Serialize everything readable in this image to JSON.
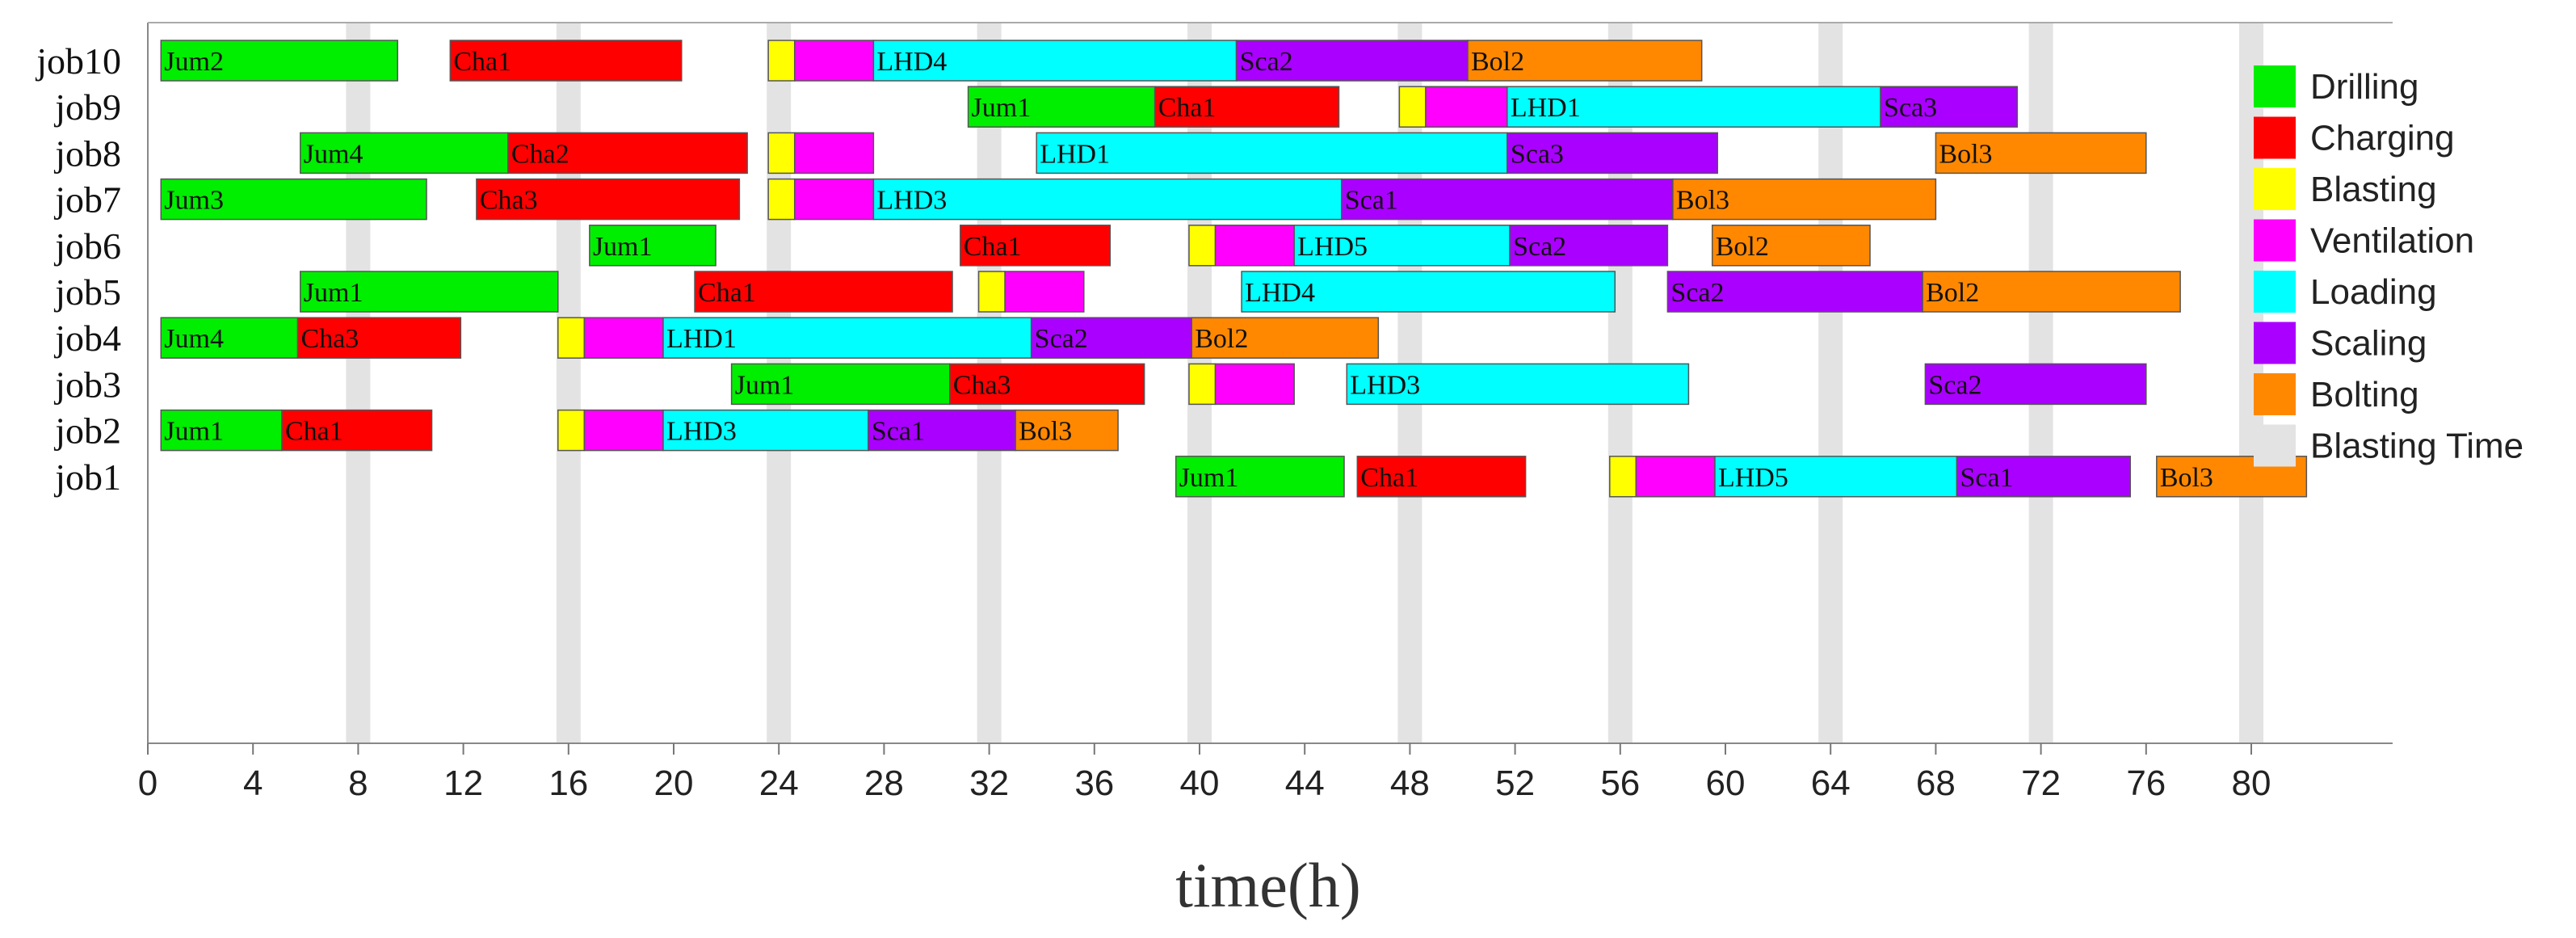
{
  "chart_data": {
    "type": "gantt",
    "xlabel": "time(h)",
    "xlim": [
      0,
      84
    ],
    "xticks": [
      0,
      4,
      8,
      12,
      16,
      20,
      24,
      28,
      32,
      36,
      40,
      44,
      48,
      52,
      56,
      60,
      64,
      68,
      72,
      76,
      80
    ],
    "jobs": [
      "job10",
      "job9",
      "job8",
      "job7",
      "job6",
      "job5",
      "job4",
      "job3",
      "job2",
      "job1"
    ],
    "blasting_times": [
      8,
      16,
      24,
      32,
      40,
      48,
      56,
      64,
      72,
      80
    ],
    "legend": [
      {
        "name": "Drilling",
        "color": "#00ee00"
      },
      {
        "name": "Charging",
        "color": "#ff0000"
      },
      {
        "name": "Blasting",
        "color": "#ffff00"
      },
      {
        "name": "Ventilation",
        "color": "#ff00ff"
      },
      {
        "name": "Loading",
        "color": "#00ffff"
      },
      {
        "name": "Scaling",
        "color": "#aa00ff"
      },
      {
        "name": "Bolting",
        "color": "#ff8800"
      },
      {
        "name": "Blasting Time",
        "color": "#e3e3e3"
      }
    ],
    "tasks": [
      {
        "job": "job10",
        "type": "Drilling",
        "label": "Jum2",
        "start": 0.5,
        "end": 9.5
      },
      {
        "job": "job10",
        "type": "Charging",
        "label": "Cha1",
        "start": 11.5,
        "end": 20.3
      },
      {
        "job": "job10",
        "type": "Blasting",
        "label": "",
        "start": 23.6,
        "end": 24.6
      },
      {
        "job": "job10",
        "type": "Ventilation",
        "label": "",
        "start": 24.6,
        "end": 27.6
      },
      {
        "job": "job10",
        "type": "Loading",
        "label": "LHD4",
        "start": 27.6,
        "end": 41.4
      },
      {
        "job": "job10",
        "type": "Scaling",
        "label": "Sca2",
        "start": 41.4,
        "end": 50.2
      },
      {
        "job": "job10",
        "type": "Bolting",
        "label": "Bol2",
        "start": 50.2,
        "end": 59.1
      },
      {
        "job": "job9",
        "type": "Drilling",
        "label": "Jum1",
        "start": 31.2,
        "end": 38.3
      },
      {
        "job": "job9",
        "type": "Charging",
        "label": "Cha1",
        "start": 38.3,
        "end": 45.3
      },
      {
        "job": "job9",
        "type": "Blasting",
        "label": "",
        "start": 47.6,
        "end": 48.6
      },
      {
        "job": "job9",
        "type": "Ventilation",
        "label": "",
        "start": 48.6,
        "end": 51.7
      },
      {
        "job": "job9",
        "type": "Loading",
        "label": "LHD1",
        "start": 51.7,
        "end": 65.9
      },
      {
        "job": "job9",
        "type": "Scaling",
        "label": "Sca3",
        "start": 65.9,
        "end": 71.1
      },
      {
        "job": "job8",
        "type": "Drilling",
        "label": "Jum4",
        "start": 5.8,
        "end": 13.7
      },
      {
        "job": "job8",
        "type": "Charging",
        "label": "Cha2",
        "start": 13.7,
        "end": 22.8
      },
      {
        "job": "job8",
        "type": "Blasting",
        "label": "",
        "start": 23.6,
        "end": 24.6
      },
      {
        "job": "job8",
        "type": "Ventilation",
        "label": "",
        "start": 24.6,
        "end": 27.6
      },
      {
        "job": "job8",
        "type": "Loading",
        "label": "LHD1",
        "start": 33.8,
        "end": 51.7
      },
      {
        "job": "job8",
        "type": "Scaling",
        "label": "Sca3",
        "start": 51.7,
        "end": 59.7
      },
      {
        "job": "job8",
        "type": "Bolting",
        "label": "Bol3",
        "start": 68.0,
        "end": 76.0
      },
      {
        "job": "job7",
        "type": "Drilling",
        "label": "Jum3",
        "start": 0.5,
        "end": 10.6
      },
      {
        "job": "job7",
        "type": "Charging",
        "label": "Cha3",
        "start": 12.5,
        "end": 22.5
      },
      {
        "job": "job7",
        "type": "Blasting",
        "label": "",
        "start": 23.6,
        "end": 24.6
      },
      {
        "job": "job7",
        "type": "Ventilation",
        "label": "",
        "start": 24.6,
        "end": 27.6
      },
      {
        "job": "job7",
        "type": "Loading",
        "label": "LHD3",
        "start": 27.6,
        "end": 45.4
      },
      {
        "job": "job7",
        "type": "Scaling",
        "label": "Sca1",
        "start": 45.4,
        "end": 58.0
      },
      {
        "job": "job7",
        "type": "Bolting",
        "label": "Bol3",
        "start": 58.0,
        "end": 68.0
      },
      {
        "job": "job6",
        "type": "Drilling",
        "label": "Jum1",
        "start": 16.8,
        "end": 21.6
      },
      {
        "job": "job6",
        "type": "Charging",
        "label": "Cha1",
        "start": 30.9,
        "end": 36.6
      },
      {
        "job": "job6",
        "type": "Blasting",
        "label": "",
        "start": 39.6,
        "end": 40.6
      },
      {
        "job": "job6",
        "type": "Ventilation",
        "label": "",
        "start": 40.6,
        "end": 43.6
      },
      {
        "job": "job6",
        "type": "Loading",
        "label": "LHD5",
        "start": 43.6,
        "end": 51.8
      },
      {
        "job": "job6",
        "type": "Scaling",
        "label": "Sca2",
        "start": 51.8,
        "end": 57.8
      },
      {
        "job": "job6",
        "type": "Bolting",
        "label": "Bol2",
        "start": 59.5,
        "end": 65.5
      },
      {
        "job": "job5",
        "type": "Drilling",
        "label": "Jum1",
        "start": 5.8,
        "end": 15.6
      },
      {
        "job": "job5",
        "type": "Charging",
        "label": "Cha1",
        "start": 20.8,
        "end": 30.6
      },
      {
        "job": "job5",
        "type": "Blasting",
        "label": "",
        "start": 31.6,
        "end": 32.6
      },
      {
        "job": "job5",
        "type": "Ventilation",
        "label": "",
        "start": 32.6,
        "end": 35.6
      },
      {
        "job": "job5",
        "type": "Loading",
        "label": "LHD4",
        "start": 41.6,
        "end": 55.8
      },
      {
        "job": "job5",
        "type": "Scaling",
        "label": "Sca2",
        "start": 57.8,
        "end": 67.5
      },
      {
        "job": "job5",
        "type": "Bolting",
        "label": "Bol2",
        "start": 67.5,
        "end": 77.3
      },
      {
        "job": "job4",
        "type": "Drilling",
        "label": "Jum4",
        "start": 0.5,
        "end": 5.7
      },
      {
        "job": "job4",
        "type": "Charging",
        "label": "Cha3",
        "start": 5.7,
        "end": 11.9
      },
      {
        "job": "job4",
        "type": "Blasting",
        "label": "",
        "start": 15.6,
        "end": 16.6
      },
      {
        "job": "job4",
        "type": "Ventilation",
        "label": "",
        "start": 16.6,
        "end": 19.6
      },
      {
        "job": "job4",
        "type": "Loading",
        "label": "LHD1",
        "start": 19.6,
        "end": 33.6
      },
      {
        "job": "job4",
        "type": "Scaling",
        "label": "Sca2",
        "start": 33.6,
        "end": 39.7
      },
      {
        "job": "job4",
        "type": "Bolting",
        "label": "Bol2",
        "start": 39.7,
        "end": 46.8
      },
      {
        "job": "job3",
        "type": "Drilling",
        "label": "Jum1",
        "start": 22.2,
        "end": 30.5
      },
      {
        "job": "job3",
        "type": "Charging",
        "label": "Cha3",
        "start": 30.5,
        "end": 37.9
      },
      {
        "job": "job3",
        "type": "Blasting",
        "label": "",
        "start": 39.6,
        "end": 40.6
      },
      {
        "job": "job3",
        "type": "Ventilation",
        "label": "",
        "start": 40.6,
        "end": 43.6
      },
      {
        "job": "job3",
        "type": "Loading",
        "label": "LHD3",
        "start": 45.6,
        "end": 58.6
      },
      {
        "job": "job3",
        "type": "Scaling",
        "label": "Sca2",
        "start": 67.6,
        "end": 76.0
      },
      {
        "job": "job2",
        "type": "Drilling",
        "label": "Jum1",
        "start": 0.5,
        "end": 5.1
      },
      {
        "job": "job2",
        "type": "Charging",
        "label": "Cha1",
        "start": 5.1,
        "end": 10.8
      },
      {
        "job": "job2",
        "type": "Blasting",
        "label": "",
        "start": 15.6,
        "end": 16.6
      },
      {
        "job": "job2",
        "type": "Ventilation",
        "label": "",
        "start": 16.6,
        "end": 19.6
      },
      {
        "job": "job2",
        "type": "Loading",
        "label": "LHD3",
        "start": 19.6,
        "end": 27.4
      },
      {
        "job": "job2",
        "type": "Scaling",
        "label": "Sca1",
        "start": 27.4,
        "end": 33.0
      },
      {
        "job": "job2",
        "type": "Bolting",
        "label": "Bol3",
        "start": 33.0,
        "end": 36.9
      },
      {
        "job": "job1",
        "type": "Drilling",
        "label": "Jum1",
        "start": 39.1,
        "end": 45.5
      },
      {
        "job": "job1",
        "type": "Charging",
        "label": "Cha1",
        "start": 46.0,
        "end": 52.4
      },
      {
        "job": "job1",
        "type": "Blasting",
        "label": "",
        "start": 55.6,
        "end": 56.6
      },
      {
        "job": "job1",
        "type": "Ventilation",
        "label": "",
        "start": 56.6,
        "end": 59.6
      },
      {
        "job": "job1",
        "type": "Loading",
        "label": "LHD5",
        "start": 59.6,
        "end": 68.8
      },
      {
        "job": "job1",
        "type": "Scaling",
        "label": "Sca1",
        "start": 68.8,
        "end": 75.4
      },
      {
        "job": "job1",
        "type": "Bolting",
        "label": "Bol3",
        "start": 76.4,
        "end": 82.1
      }
    ]
  }
}
